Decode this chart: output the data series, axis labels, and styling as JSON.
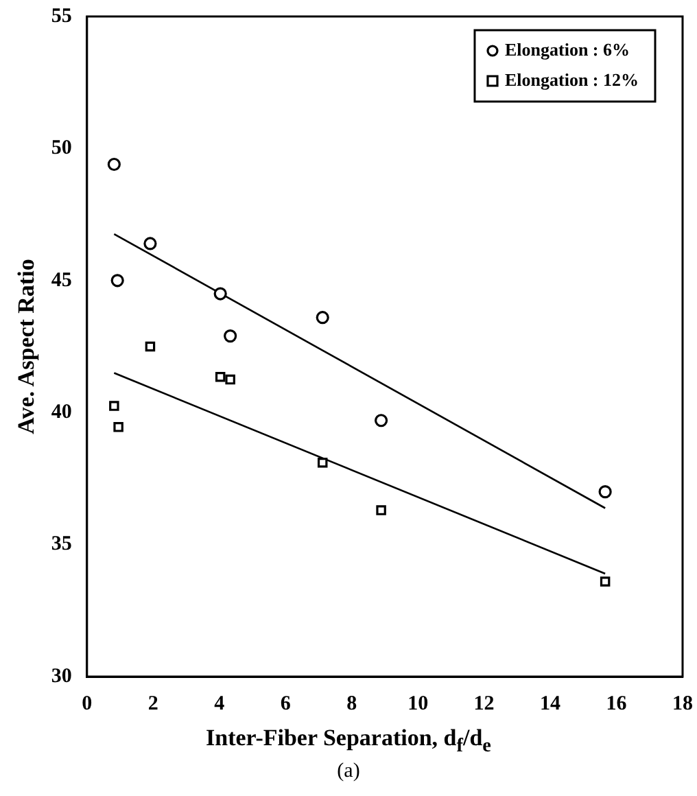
{
  "chart_data": {
    "type": "scatter",
    "xlabel": "Inter-Fiber Separation, d$_{f}$/d$_{e}$",
    "ylabel": "Ave. Aspect Ratio",
    "annotations": [
      "(a)"
    ],
    "xlim": [
      0,
      18
    ],
    "xticks": [
      0,
      2,
      4,
      6,
      8,
      10,
      12,
      14,
      16,
      18
    ],
    "ylim": [
      30,
      55
    ],
    "yticks": [
      30,
      35,
      40,
      45,
      50,
      55
    ],
    "legend": "top right",
    "grid": false,
    "series": [
      {
        "name": "Elongation : 6%",
        "color": "#000000",
        "marker": "circle",
        "x": [
          0.82,
          0.92,
          1.91,
          4.03,
          4.33,
          7.12,
          8.89,
          15.66
        ],
        "values": [
          49.4,
          45.0,
          46.4,
          44.5,
          42.9,
          43.6,
          39.7,
          37.0
        ]
      },
      {
        "name": "Elongation : 12%",
        "color": "#000000",
        "marker": "square",
        "x": [
          0.82,
          0.95,
          1.91,
          4.03,
          4.33,
          7.12,
          8.89,
          15.66
        ],
        "values": [
          40.25,
          39.45,
          42.5,
          41.35,
          41.25,
          38.1,
          36.3,
          33.6
        ]
      },
      {
        "type": "line",
        "color": "#000000",
        "marker": "none",
        "x": [
          0.82,
          15.66
        ],
        "values": [
          46.76,
          36.38
        ]
      },
      {
        "type": "line",
        "color": "#000000",
        "marker": "none",
        "x": [
          0.82,
          15.66
        ],
        "values": [
          41.5,
          33.9
        ]
      }
    ]
  }
}
